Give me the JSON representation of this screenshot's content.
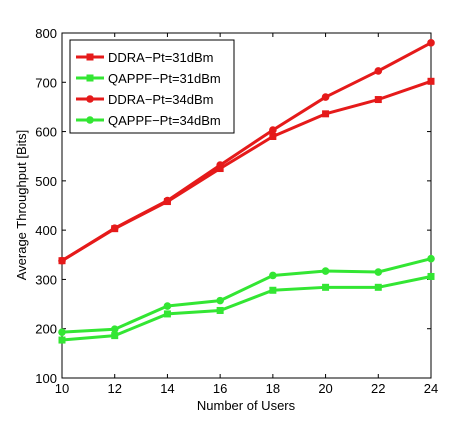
{
  "chart_data": {
    "type": "line",
    "xlabel": "Number of Users",
    "ylabel": "Average Throughput [Bits]",
    "xlim": [
      10,
      24
    ],
    "ylim": [
      100,
      800
    ],
    "x_ticks": [
      "10",
      "12",
      "14",
      "16",
      "18",
      "20",
      "22",
      "24"
    ],
    "y_ticks": [
      "100",
      "200",
      "300",
      "400",
      "500",
      "600",
      "700",
      "800"
    ],
    "grid": false,
    "legend_position": "top-left",
    "x": [
      10,
      12,
      14,
      16,
      18,
      20,
      22,
      24
    ],
    "series": [
      {
        "name": "DDRA−Pt=31dBm",
        "color": "#e51a1a",
        "marker": "square",
        "values": [
          338,
          403,
          458,
          525,
          590,
          636,
          665,
          702
        ]
      },
      {
        "name": "QAPPF−Pt=31dBm",
        "color": "#33e633",
        "marker": "square",
        "values": [
          177,
          186,
          230,
          237,
          278,
          284,
          284,
          306
        ]
      },
      {
        "name": "DDRA−Pt=34dBm",
        "color": "#e51a1a",
        "marker": "circle",
        "values": [
          338,
          404,
          460,
          532,
          603,
          670,
          723,
          780
        ]
      },
      {
        "name": "QAPPF−Pt=34dBm",
        "color": "#33e633",
        "marker": "circle",
        "values": [
          193,
          199,
          246,
          257,
          308,
          317,
          315,
          342
        ]
      }
    ]
  }
}
